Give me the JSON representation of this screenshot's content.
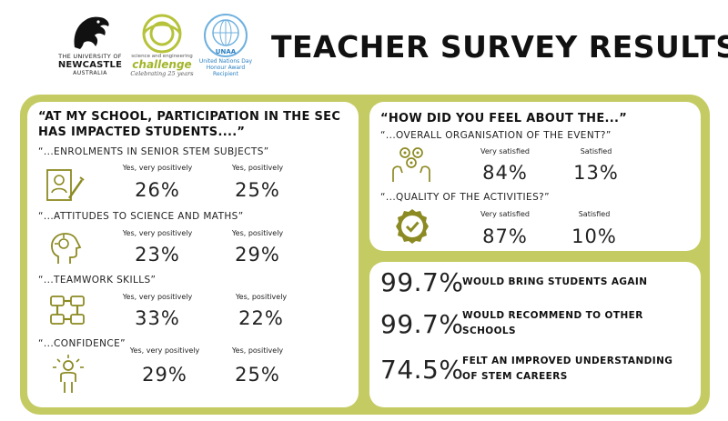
{
  "header": {
    "title": "TEACHER SURVEY RESULTS",
    "uon": {
      "line1": "THE UNIVERSITY OF",
      "line2": "NEWCASTLE",
      "line3": "AUSTRALIA"
    },
    "sec": {
      "line1": "science and engineering",
      "line2": "challenge",
      "line3": "Celebrating 25 years"
    },
    "un": {
      "badge": "UNAA",
      "line1": "United Nations Day",
      "line2": "Honour Award",
      "line3": "Recipient"
    }
  },
  "impact": {
    "title": "“AT MY SCHOOL, PARTICIPATION IN THE SEC HAS IMPACTED STUDENTS....”",
    "items": [
      {
        "subject": "“...ENROLMENTS IN SENIOR STEM SUBJECTS”",
        "label1": "Yes, very positively",
        "value1": "26%",
        "label2": "Yes, positively",
        "value2": "25%",
        "icon": "enrolment-form-icon"
      },
      {
        "subject": "“...ATTITUDES TO SCIENCE AND MATHS”",
        "label1": "Yes, very positively",
        "value1": "23%",
        "label2": "Yes, positively",
        "value2": "29%",
        "icon": "head-thinking-icon"
      },
      {
        "subject": "“...TEAMWORK SKILLS”",
        "label1": "Yes, very positively",
        "value1": "33%",
        "label2": "Yes, positively",
        "value2": "22%",
        "icon": "teamwork-hands-icon"
      },
      {
        "subject": "“...CONFIDENCE”",
        "label1": "Yes, very positively",
        "value1": "29%",
        "label2": "Yes, positively",
        "value2": "25%",
        "icon": "confident-person-icon"
      }
    ]
  },
  "feel": {
    "title": "“HOW DID YOU FEEL ABOUT THE...”",
    "items": [
      {
        "subject": "“...OVERALL ORGANISATION OF THE EVENT?”",
        "label1": "Very satisfied",
        "value1": "84%",
        "label2": "Satisfied",
        "value2": "13%",
        "icon": "organisation-gears-icon"
      },
      {
        "subject": "“...QUALITY OF THE ACTIVITIES?”",
        "label1": "Very satisfied",
        "value1": "87%",
        "label2": "Satisfied",
        "value2": "10%",
        "icon": "quality-badge-icon"
      }
    ]
  },
  "summary": [
    {
      "value": "99.7%",
      "text": "WOULD BRING STUDENTS AGAIN"
    },
    {
      "value": "99.7%",
      "text": "WOULD RECOMMEND TO OTHER SCHOOLS"
    },
    {
      "value": "74.5%",
      "text": "FELT AN IMPROVED UNDERSTANDING OF STEM CAREERS"
    }
  ],
  "colors": {
    "accent": "#c4cb62",
    "icon": "#8c8a22",
    "text": "#222222"
  }
}
